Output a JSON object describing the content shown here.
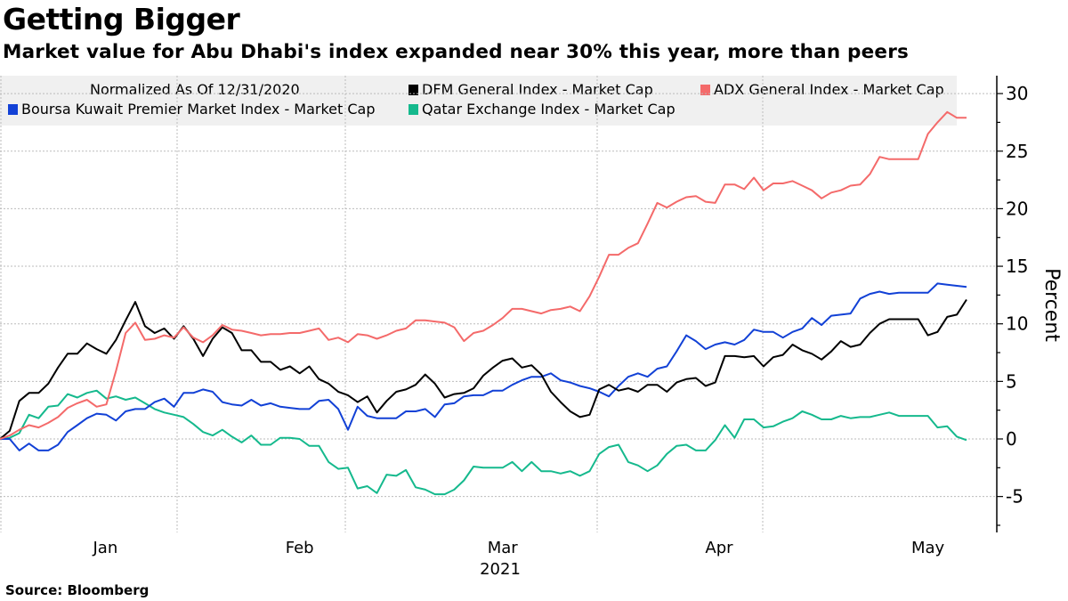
{
  "title": "Getting Bigger",
  "subtitle": "Market value for Abu Dhabi's index expanded near 30% this year, more than peers",
  "source": "Source: Bloomberg",
  "chart_data": {
    "type": "line",
    "title": "Getting Bigger",
    "subtitle": "Market value for Abu Dhabi's index expanded near 30% this year, more than peers",
    "legend_note": "Normalized As Of 12/31/2020",
    "xlabel": "2021",
    "ylabel": "Percent",
    "ylim": [
      -8,
      32
    ],
    "yticks": [
      -5,
      0,
      5,
      10,
      15,
      20,
      25,
      30
    ],
    "xlim": [
      0,
      103
    ],
    "x_unit": "trading day index since 12/31/2020",
    "month_ticks": [
      {
        "label": "Jan",
        "x": 10.9
      },
      {
        "label": "Feb",
        "x": 31
      },
      {
        "label": "Mar",
        "x": 52
      },
      {
        "label": "Apr",
        "x": 74.4
      },
      {
        "label": "May",
        "x": 96
      }
    ],
    "grid": true,
    "legend_placement": "top",
    "series": [
      {
        "name": "DFM General Index - Market Cap",
        "color": "#000000",
        "values": [
          0,
          0.7,
          3.3,
          4.0,
          4.0,
          4.8,
          6.2,
          7.4,
          7.4,
          8.3,
          7.8,
          7.4,
          8.6,
          10.3,
          11.9,
          9.8,
          9.2,
          9.6,
          8.7,
          9.8,
          8.7,
          7.2,
          8.7,
          9.7,
          9.2,
          7.7,
          7.7,
          6.7,
          6.7,
          6.0,
          6.3,
          5.7,
          6.3,
          5.2,
          4.8,
          4.1,
          3.8,
          3.2,
          3.7,
          2.3,
          3.3,
          4.1,
          4.3,
          4.7,
          5.6,
          4.8,
          3.6,
          3.9,
          4.0,
          4.4,
          5.5,
          6.2,
          6.8,
          7.0,
          6.2,
          6.4,
          5.6,
          4.1,
          3.2,
          2.4,
          1.9,
          2.1,
          4.3,
          4.7,
          4.2,
          4.4,
          4.1,
          4.7,
          4.7,
          4.1,
          4.9,
          5.2,
          5.3,
          4.6,
          4.9,
          7.2,
          7.2,
          7.1,
          7.2,
          6.3,
          7.1,
          7.3,
          8.2,
          7.7,
          7.4,
          6.9,
          7.6,
          8.5,
          8.0,
          8.2,
          9.2,
          10.0,
          10.4,
          10.4,
          10.4,
          10.4,
          9.0,
          9.3,
          10.6,
          10.8,
          12.1
        ]
      },
      {
        "name": "ADX General Index - Market Cap",
        "color": "#f46a6a",
        "values": [
          0,
          0.3,
          0.8,
          1.2,
          1.0,
          1.4,
          1.9,
          2.7,
          3.1,
          3.4,
          2.8,
          3.0,
          5.9,
          9.2,
          10.1,
          8.6,
          8.7,
          9.0,
          8.8,
          9.7,
          8.8,
          8.4,
          9.0,
          9.9,
          9.5,
          9.4,
          9.2,
          9.0,
          9.1,
          9.1,
          9.2,
          9.2,
          9.4,
          9.6,
          8.6,
          8.8,
          8.4,
          9.1,
          9.0,
          8.7,
          9.0,
          9.4,
          9.6,
          10.3,
          10.3,
          10.2,
          10.1,
          9.7,
          8.5,
          9.2,
          9.4,
          9.9,
          10.5,
          11.3,
          11.3,
          11.1,
          10.9,
          11.2,
          11.3,
          11.5,
          11.1,
          12.4,
          14.1,
          16.0,
          16.0,
          16.6,
          17.0,
          18.7,
          20.5,
          20.1,
          20.6,
          21.0,
          21.1,
          20.6,
          20.5,
          22.1,
          22.1,
          21.7,
          22.7,
          21.6,
          22.2,
          22.2,
          22.4,
          22.0,
          21.6,
          20.9,
          21.4,
          21.6,
          22.0,
          22.1,
          23.0,
          24.5,
          24.3,
          24.3,
          24.3,
          24.3,
          26.5,
          27.5,
          28.4,
          27.9,
          27.9
        ]
      },
      {
        "name": "Boursa Kuwait Premier Market Index - Market Cap",
        "color": "#1241d6",
        "values": [
          0,
          0,
          -1.0,
          -0.4,
          -1.0,
          -1.0,
          -0.5,
          0.6,
          1.2,
          1.8,
          2.2,
          2.1,
          1.6,
          2.4,
          2.6,
          2.6,
          3.2,
          3.5,
          2.8,
          4.0,
          4.0,
          4.3,
          4.1,
          3.2,
          3.0,
          2.9,
          3.4,
          2.9,
          3.1,
          2.8,
          2.7,
          2.6,
          2.6,
          3.3,
          3.4,
          2.6,
          0.8,
          2.8,
          2.0,
          1.8,
          1.8,
          1.8,
          2.4,
          2.4,
          2.6,
          1.9,
          3.0,
          3.1,
          3.7,
          3.8,
          3.8,
          4.2,
          4.2,
          4.7,
          5.1,
          5.4,
          5.4,
          5.7,
          5.1,
          4.9,
          4.6,
          4.4,
          4.1,
          3.7,
          4.6,
          5.4,
          5.7,
          5.4,
          6.1,
          6.3,
          7.6,
          9.0,
          8.5,
          7.8,
          8.2,
          8.4,
          8.2,
          8.6,
          9.5,
          9.3,
          9.3,
          8.8,
          9.3,
          9.6,
          10.5,
          9.9,
          10.7,
          10.8,
          10.9,
          12.2,
          12.6,
          12.8,
          12.6,
          12.7,
          12.7,
          12.7,
          12.7,
          13.5,
          13.4,
          13.3,
          13.2
        ]
      },
      {
        "name": "Qatar Exchange Index - Market Cap",
        "color": "#15b98d",
        "values": [
          0,
          0.1,
          0.5,
          2.1,
          1.8,
          2.8,
          2.9,
          3.9,
          3.6,
          4.0,
          4.2,
          3.5,
          3.7,
          3.4,
          3.6,
          3.1,
          2.6,
          2.3,
          2.1,
          1.9,
          1.3,
          0.6,
          0.3,
          0.8,
          0.2,
          -0.3,
          0.3,
          -0.5,
          -0.5,
          0.1,
          0.1,
          0,
          -0.6,
          -0.6,
          -2.0,
          -2.6,
          -2.5,
          -4.3,
          -4.1,
          -4.7,
          -3.1,
          -3.2,
          -2.7,
          -4.2,
          -4.4,
          -4.8,
          -4.8,
          -4.4,
          -3.6,
          -2.4,
          -2.5,
          -2.5,
          -2.5,
          -2.0,
          -2.8,
          -2.0,
          -2.8,
          -2.8,
          -3.0,
          -2.8,
          -3.2,
          -2.8,
          -1.3,
          -0.7,
          -0.5,
          -2.0,
          -2.3,
          -2.8,
          -2.3,
          -1.3,
          -0.6,
          -0.5,
          -1.0,
          -1.0,
          -0.1,
          1.2,
          0.1,
          1.7,
          1.7,
          1.0,
          1.1,
          1.5,
          1.8,
          2.4,
          2.1,
          1.7,
          1.7,
          2.0,
          1.8,
          1.9,
          1.9,
          2.1,
          2.3,
          2.0,
          2.0,
          2.0,
          2.0,
          1.0,
          1.1,
          0.2,
          -0.1
        ]
      }
    ]
  }
}
